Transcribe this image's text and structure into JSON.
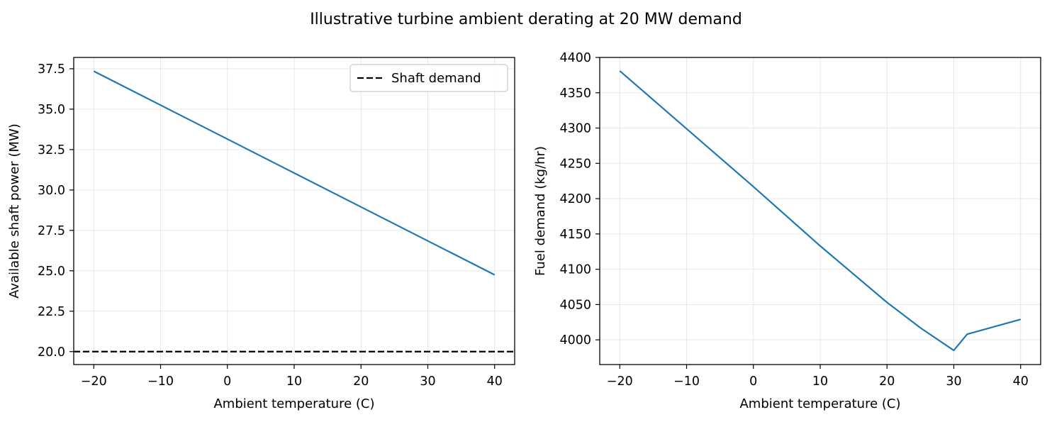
{
  "figure": {
    "suptitle": "Illustrative turbine ambient derating at 20 MW demand"
  },
  "chart_data": [
    {
      "type": "line",
      "xlabel": "Ambient temperature (C)",
      "ylabel": "Available shaft power (MW)",
      "xlim": [
        -23,
        43
      ],
      "ylim": [
        19.2,
        38.2
      ],
      "x_ticks": [
        -20,
        -10,
        0,
        10,
        20,
        30,
        40
      ],
      "x_tick_labels": [
        "−20",
        "−10",
        "0",
        "10",
        "20",
        "30",
        "40"
      ],
      "y_ticks": [
        20.0,
        22.5,
        25.0,
        27.5,
        30.0,
        32.5,
        35.0,
        37.5
      ],
      "y_tick_labels": [
        "20.0",
        "22.5",
        "25.0",
        "27.5",
        "30.0",
        "32.5",
        "35.0",
        "37.5"
      ],
      "grid": true,
      "legend": {
        "placement": "upper-right",
        "entries": [
          "Shaft demand"
        ]
      },
      "series": [
        {
          "name": "",
          "color": "#1f77b4",
          "style": "solid",
          "x": [
            -20,
            40
          ],
          "y": [
            37.35,
            24.75
          ]
        },
        {
          "name": "Shaft demand",
          "color": "#000000",
          "style": "dashed",
          "kind": "hline",
          "y": 20.0
        }
      ]
    },
    {
      "type": "line",
      "xlabel": "Ambient temperature (C)",
      "ylabel": "Fuel demand (kg/hr)",
      "xlim": [
        -23,
        43
      ],
      "ylim": [
        3965,
        4400
      ],
      "x_ticks": [
        -20,
        -10,
        0,
        10,
        20,
        30,
        40
      ],
      "x_tick_labels": [
        "−20",
        "−10",
        "0",
        "10",
        "20",
        "30",
        "40"
      ],
      "y_ticks": [
        4000,
        4050,
        4100,
        4150,
        4200,
        4250,
        4300,
        4350,
        4400
      ],
      "y_tick_labels": [
        "4000",
        "4050",
        "4100",
        "4150",
        "4200",
        "4250",
        "4300",
        "4350",
        "4400"
      ],
      "grid": true,
      "series": [
        {
          "name": "",
          "color": "#1f77b4",
          "style": "solid",
          "x": [
            -20,
            -10,
            0,
            10,
            20,
            25,
            30,
            32,
            40
          ],
          "y": [
            4381,
            4299,
            4217,
            4133,
            4053,
            4017,
            3985,
            4008,
            4029
          ]
        }
      ]
    }
  ]
}
